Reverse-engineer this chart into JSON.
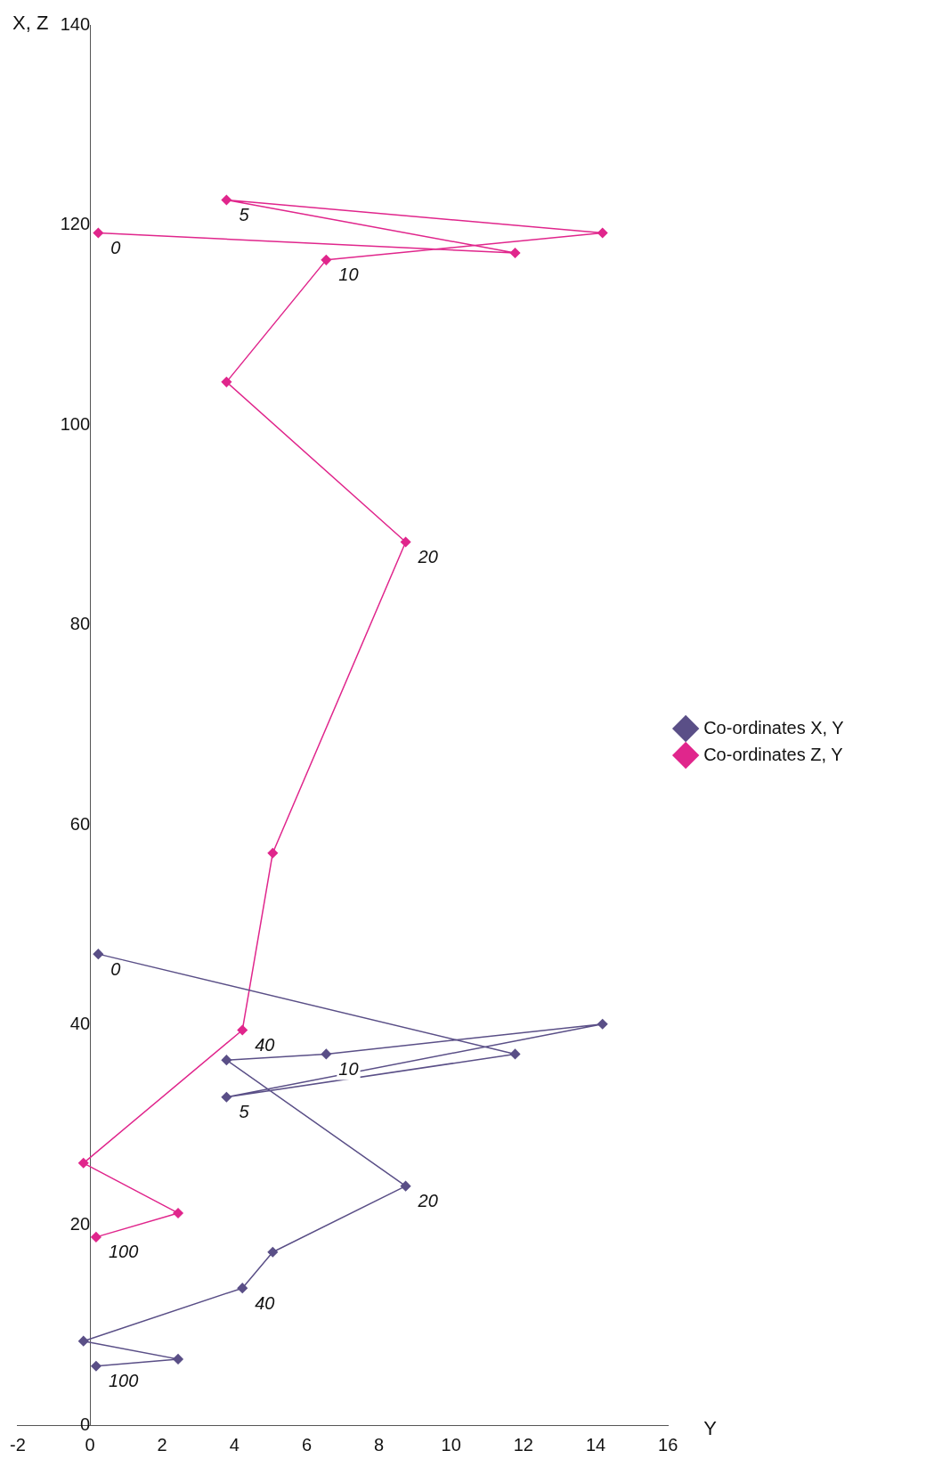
{
  "chart_data": {
    "type": "line",
    "xlabel": "Y",
    "ylabel": "X, Z",
    "xlim": [
      -2,
      16
    ],
    "xticks": [
      -2,
      0,
      2,
      4,
      6,
      8,
      10,
      12,
      14,
      16
    ],
    "ylim": [
      0,
      140
    ],
    "yticks": [
      0,
      20,
      40,
      60,
      80,
      100,
      120,
      140
    ],
    "grid": false,
    "legend": "right",
    "marker": "diamond",
    "line_style": "solid",
    "series": [
      {
        "name": "Co-ordinates X, Y",
        "color": "#5a4f87",
        "x": [
          0.23,
          11.77,
          3.78,
          14.19,
          6.54,
          3.78,
          8.74,
          5.06,
          4.22,
          -0.18,
          2.44,
          0.17
        ],
        "values": [
          47.1,
          37.1,
          32.8,
          40.1,
          37.1,
          36.5,
          23.9,
          17.3,
          13.7,
          8.4,
          6.6,
          5.9
        ]
      },
      {
        "name": "Co-ordinates Z, Y",
        "color": "#e0268c",
        "x": [
          0.23,
          11.77,
          3.78,
          14.19,
          6.54,
          3.78,
          8.74,
          5.06,
          4.22,
          -0.18,
          2.44,
          0.17
        ],
        "values": [
          119.2,
          117.2,
          122.5,
          119.2,
          116.5,
          104.3,
          88.3,
          57.2,
          39.5,
          26.2,
          21.2,
          18.8
        ]
      }
    ],
    "annotations": [
      {
        "text": "0",
        "x": 0.23,
        "y": 47.1
      },
      {
        "text": "5",
        "x": 3.78,
        "y": 32.8
      },
      {
        "text": "10",
        "x": 6.54,
        "y": 37.1
      },
      {
        "text": "20",
        "x": 8.74,
        "y": 23.9
      },
      {
        "text": "40",
        "x": 4.22,
        "y": 13.7
      },
      {
        "text": "100",
        "x": 0.17,
        "y": 5.9
      },
      {
        "text": "0",
        "x": 0.23,
        "y": 119.2
      },
      {
        "text": "5",
        "x": 3.78,
        "y": 122.5
      },
      {
        "text": "10",
        "x": 6.54,
        "y": 116.5
      },
      {
        "text": "20",
        "x": 8.74,
        "y": 88.3
      },
      {
        "text": "40",
        "x": 4.22,
        "y": 39.5
      },
      {
        "text": "100",
        "x": 0.17,
        "y": 18.8
      }
    ]
  }
}
